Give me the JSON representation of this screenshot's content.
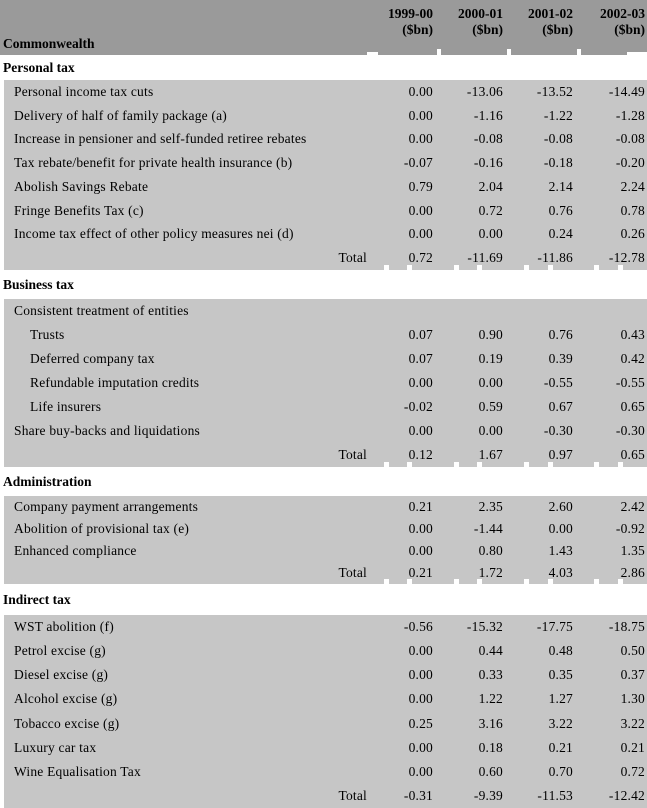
{
  "header": {
    "row_label": "Commonwealth",
    "columns": [
      {
        "year": "1999-00",
        "unit": "($bn)"
      },
      {
        "year": "2000-01",
        "unit": "($bn)"
      },
      {
        "year": "2001-02",
        "unit": "($bn)"
      },
      {
        "year": "2002-03",
        "unit": "($bn)"
      }
    ]
  },
  "colors": {
    "header_bg": "#9a9a9a",
    "row_bg": "#c6c6c6",
    "text": "#000000"
  },
  "sections": [
    {
      "title": "Personal tax",
      "rows": [
        {
          "label": "Personal income tax cuts",
          "indent": 1,
          "values": [
            "0.00",
            "-13.06",
            "-13.52",
            "-14.49"
          ]
        },
        {
          "label": "Delivery of half of family package (a)",
          "indent": 1,
          "values": [
            "0.00",
            "-1.16",
            "-1.22",
            "-1.28"
          ]
        },
        {
          "label": "Increase in pensioner and self-funded retiree rebates",
          "indent": 1,
          "values": [
            "0.00",
            "-0.08",
            "-0.08",
            "-0.08"
          ]
        },
        {
          "label": "Tax rebate/benefit for private health insurance (b)",
          "indent": 1,
          "values": [
            "-0.07",
            "-0.16",
            "-0.18",
            "-0.20"
          ]
        },
        {
          "label": "Abolish Savings Rebate",
          "indent": 1,
          "values": [
            "0.79",
            "2.04",
            "2.14",
            "2.24"
          ]
        },
        {
          "label": "Fringe Benefits Tax (c)",
          "indent": 1,
          "values": [
            "0.00",
            "0.72",
            "0.76",
            "0.78"
          ]
        },
        {
          "label": "Income tax effect of other policy measures nei (d)",
          "indent": 1,
          "values": [
            "0.00",
            "0.00",
            "0.24",
            "0.26"
          ]
        },
        {
          "label": "Total",
          "total": true,
          "values": [
            "0.72",
            "-11.69",
            "-11.86",
            "-12.78"
          ]
        }
      ]
    },
    {
      "title": "Business tax",
      "rows": [
        {
          "label": "Consistent treatment of entities",
          "indent": 1,
          "values": []
        },
        {
          "label": "Trusts",
          "indent": 2,
          "values": [
            "0.07",
            "0.90",
            "0.76",
            "0.43"
          ]
        },
        {
          "label": "Deferred company tax",
          "indent": 2,
          "values": [
            "0.07",
            "0.19",
            "0.39",
            "0.42"
          ]
        },
        {
          "label": "Refundable imputation credits",
          "indent": 2,
          "values": [
            "0.00",
            "0.00",
            "-0.55",
            "-0.55"
          ]
        },
        {
          "label": "Life insurers",
          "indent": 2,
          "values": [
            "-0.02",
            "0.59",
            "0.67",
            "0.65"
          ]
        },
        {
          "label": "Share buy-backs and liquidations",
          "indent": 1,
          "values": [
            "0.00",
            "0.00",
            "-0.30",
            "-0.30"
          ]
        },
        {
          "label": "Total",
          "total": true,
          "values": [
            "0.12",
            "1.67",
            "0.97",
            "0.65"
          ]
        }
      ]
    },
    {
      "title": "Administration",
      "rows": [
        {
          "label": "Company payment arrangements",
          "indent": 1,
          "values": [
            "0.21",
            "2.35",
            "2.60",
            "2.42"
          ]
        },
        {
          "label": "Abolition of provisional tax (e)",
          "indent": 1,
          "values": [
            "0.00",
            "-1.44",
            "0.00",
            "-0.92"
          ]
        },
        {
          "label": "Enhanced compliance",
          "indent": 1,
          "values": [
            "0.00",
            "0.80",
            "1.43",
            "1.35"
          ]
        },
        {
          "label": "Total",
          "total": true,
          "values": [
            "0.21",
            "1.72",
            "4.03",
            "2.86"
          ]
        }
      ]
    },
    {
      "title": "Indirect tax",
      "rows": [
        {
          "label": "WST abolition (f)",
          "indent": 1,
          "values": [
            "-0.56",
            "-15.32",
            "-17.75",
            "-18.75"
          ]
        },
        {
          "label": "Petrol excise (g)",
          "indent": 1,
          "values": [
            "0.00",
            "0.44",
            "0.48",
            "0.50"
          ]
        },
        {
          "label": "Diesel excise (g)",
          "indent": 1,
          "values": [
            "0.00",
            "0.33",
            "0.35",
            "0.37"
          ]
        },
        {
          "label": "Alcohol excise (g)",
          "indent": 1,
          "values": [
            "0.00",
            "1.22",
            "1.27",
            "1.30"
          ]
        },
        {
          "label": "Tobacco excise (g)",
          "indent": 1,
          "values": [
            "0.25",
            "3.16",
            "3.22",
            "3.22"
          ]
        },
        {
          "label": "Luxury car tax",
          "indent": 1,
          "values": [
            "0.00",
            "0.18",
            "0.21",
            "0.21"
          ]
        },
        {
          "label": "Wine Equalisation Tax",
          "indent": 1,
          "values": [
            "0.00",
            "0.60",
            "0.70",
            "0.72"
          ]
        },
        {
          "label": "Total",
          "total": true,
          "values": [
            "-0.31",
            "-9.39",
            "-11.53",
            "-12.42"
          ]
        }
      ]
    }
  ]
}
